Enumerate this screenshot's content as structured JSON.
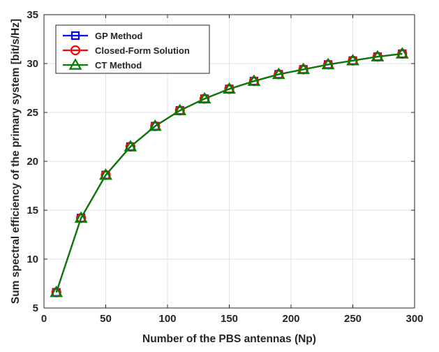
{
  "chart_data": {
    "type": "line",
    "title": "",
    "xlabel": "Number of the PBS antennas (Np)",
    "ylabel": "Sum spectral efficiency of the primary system [bit/s/Hz]",
    "xlim": [
      0,
      300
    ],
    "ylim": [
      5,
      35
    ],
    "xticks": [
      0,
      50,
      100,
      150,
      200,
      250,
      300
    ],
    "yticks": [
      5,
      10,
      15,
      20,
      25,
      30,
      35
    ],
    "grid": true,
    "legend_position": "top-left",
    "x": [
      10,
      30,
      50,
      70,
      90,
      110,
      130,
      150,
      170,
      190,
      210,
      230,
      250,
      270,
      290
    ],
    "series": [
      {
        "name": "GP Method",
        "color": "#0000ff",
        "marker": "square",
        "values": [
          6.6,
          14.2,
          18.6,
          21.5,
          23.6,
          25.2,
          26.4,
          27.4,
          28.2,
          28.9,
          29.4,
          29.9,
          30.3,
          30.7,
          31.0
        ]
      },
      {
        "name": "Closed-Form Solution",
        "color": "#ff0000",
        "marker": "circle",
        "values": [
          6.6,
          14.2,
          18.6,
          21.5,
          23.6,
          25.2,
          26.4,
          27.4,
          28.2,
          28.9,
          29.4,
          29.9,
          30.3,
          30.7,
          31.0
        ]
      },
      {
        "name": "CT Method",
        "color": "#008000",
        "marker": "triangle",
        "values": [
          6.6,
          14.2,
          18.6,
          21.5,
          23.6,
          25.2,
          26.4,
          27.4,
          28.2,
          28.9,
          29.4,
          29.9,
          30.3,
          30.7,
          31.0
        ]
      }
    ]
  }
}
